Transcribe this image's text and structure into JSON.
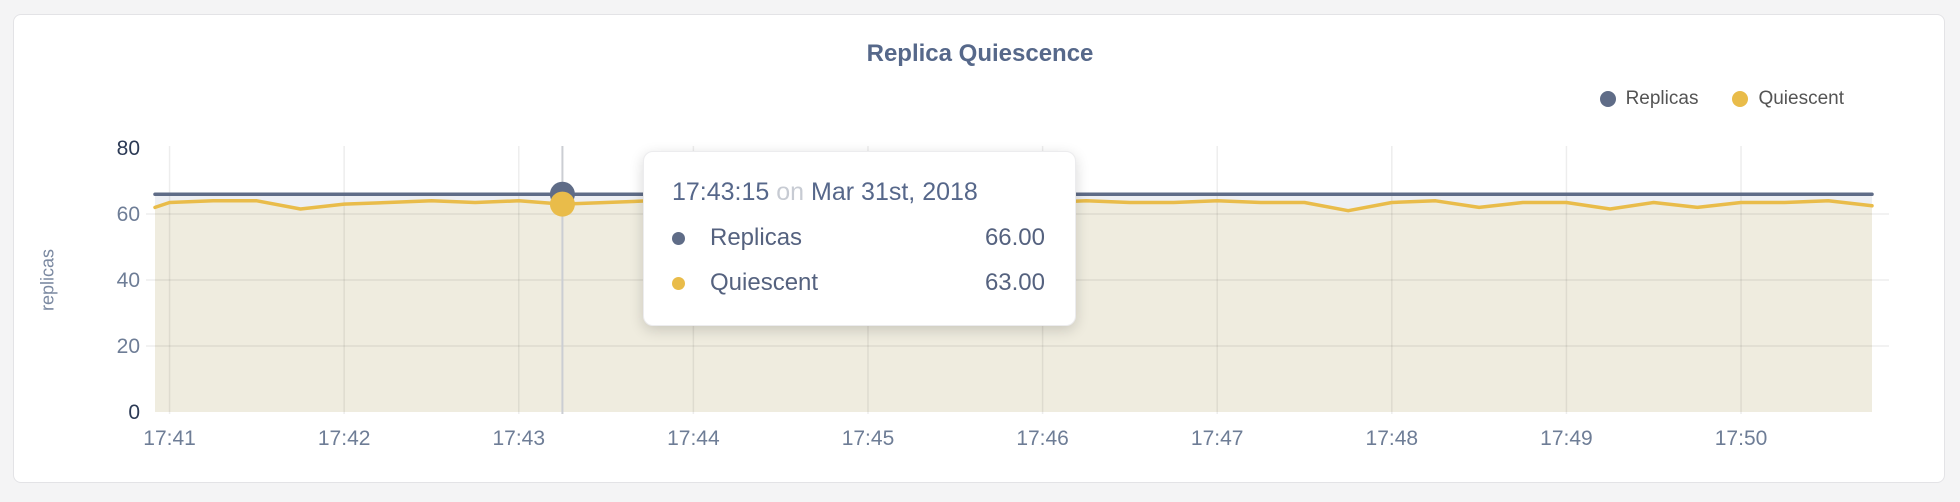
{
  "card": {
    "title": "Replica Quiescence"
  },
  "tooltip": {
    "time": "17:43:15",
    "connector": "on",
    "date": "Mar 31st, 2018",
    "rows": [
      {
        "label": "Replicas",
        "value": "66.00",
        "color": "#5f6c87"
      },
      {
        "label": "Quiescent",
        "value": "63.00",
        "color": "#e9bc4a"
      }
    ]
  },
  "colors": {
    "page_background": "#f4f4f5",
    "card_background": "#ffffff",
    "title_text": "#56688a",
    "axis_tick_mid": "#6e7d96",
    "axis_tick_edge": "#2c3a55",
    "gridline": "rgba(0,0,0,0.07)",
    "hover_line": "#cbced3",
    "legend_text": "#545454"
  },
  "chart_data": {
    "type": "area",
    "title": "Replica Quiescence",
    "xlabel": "",
    "ylabel": "replicas",
    "ylim": [
      0,
      80
    ],
    "y_ticks": [
      0,
      20,
      40,
      60,
      80
    ],
    "x_ticks": [
      "17:41",
      "17:42",
      "17:43",
      "17:44",
      "17:45",
      "17:46",
      "17:47",
      "17:48",
      "17:49",
      "17:50"
    ],
    "x_range": [
      "17:40:55",
      "17:50:45"
    ],
    "grid": true,
    "legend_position": "top-right",
    "x": [
      "17:40:55",
      "17:41:00",
      "17:41:15",
      "17:41:30",
      "17:41:45",
      "17:42:00",
      "17:42:15",
      "17:42:30",
      "17:42:45",
      "17:43:00",
      "17:43:15",
      "17:43:30",
      "17:43:45",
      "17:44:00",
      "17:44:15",
      "17:44:30",
      "17:44:45",
      "17:45:00",
      "17:45:15",
      "17:45:30",
      "17:45:45",
      "17:46:00",
      "17:46:15",
      "17:46:30",
      "17:46:45",
      "17:47:00",
      "17:47:15",
      "17:47:30",
      "17:47:45",
      "17:48:00",
      "17:48:15",
      "17:48:30",
      "17:48:45",
      "17:49:00",
      "17:49:15",
      "17:49:30",
      "17:49:45",
      "17:50:00",
      "17:50:15",
      "17:50:30",
      "17:50:45"
    ],
    "series": [
      {
        "name": "Replicas",
        "color": "#5f6c87",
        "fill": "#edeff3",
        "values": [
          66,
          66,
          66,
          66,
          66,
          66,
          66,
          66,
          66,
          66,
          66,
          66,
          66,
          66,
          66,
          66,
          66,
          66,
          66,
          66,
          66,
          66,
          66,
          66,
          66,
          66,
          66,
          66,
          66,
          66,
          66,
          66,
          66,
          66,
          66,
          66,
          66,
          66,
          66,
          66,
          66
        ]
      },
      {
        "name": "Quiescent",
        "color": "#e9bc4a",
        "fill": "#efecdf",
        "values": [
          62,
          63.5,
          64,
          64,
          61.5,
          63,
          63.5,
          64,
          63.5,
          64,
          63,
          63.5,
          64,
          63.5,
          63,
          63.5,
          64,
          63.5,
          63.5,
          64,
          63.5,
          63.5,
          64,
          63.5,
          63.5,
          64,
          63.5,
          63.5,
          61,
          63.5,
          64,
          62,
          63.5,
          63.5,
          61.5,
          63.5,
          62,
          63.5,
          63.5,
          64,
          62.5
        ]
      }
    ],
    "hover": {
      "time": "17:43:15",
      "values": {
        "Replicas": 66,
        "Quiescent": 63
      }
    }
  }
}
